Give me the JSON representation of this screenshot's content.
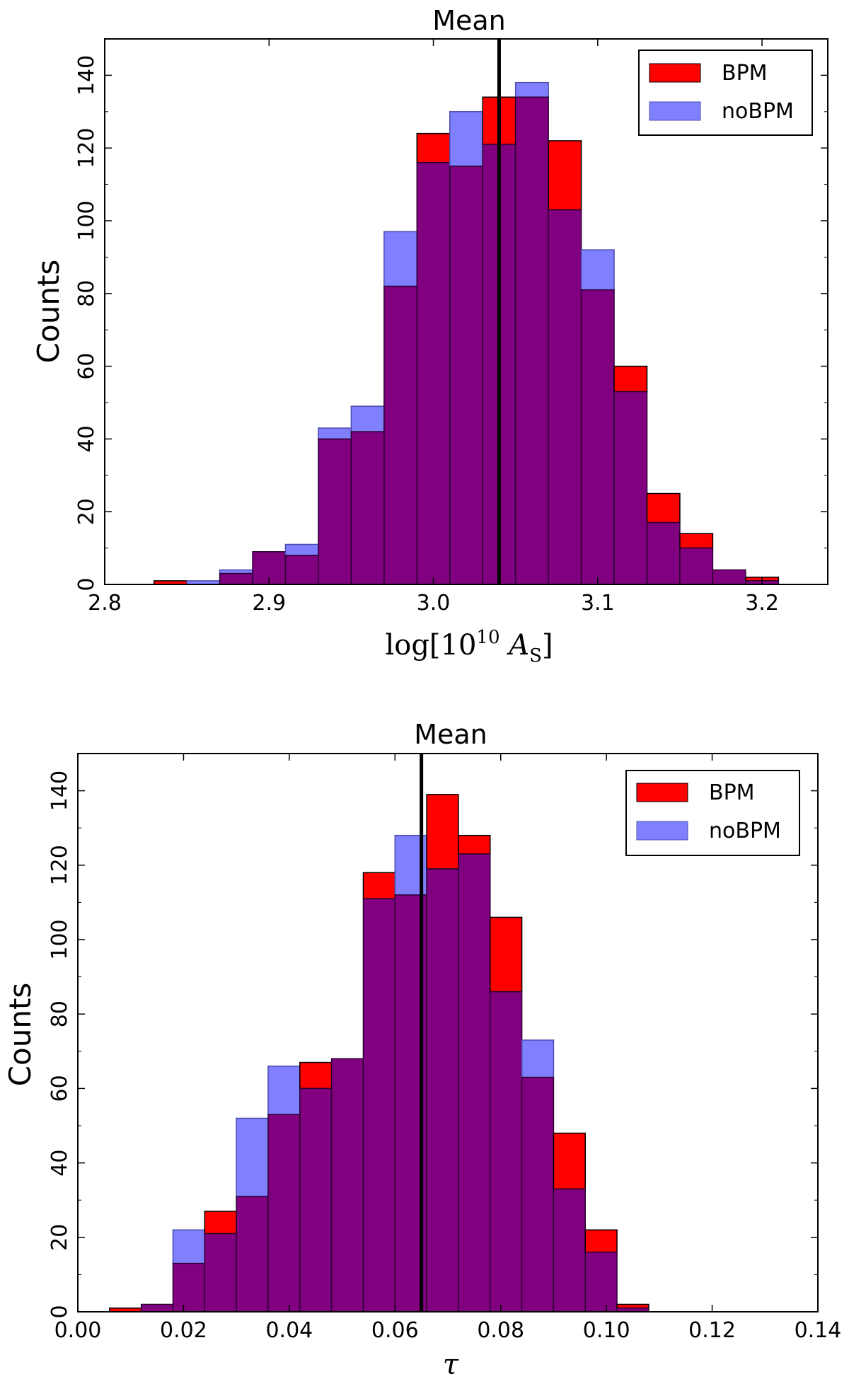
{
  "chart_data": [
    {
      "type": "bar",
      "title": "Mean",
      "xlabel": "log[10^10 A_s]",
      "ylabel": "Counts",
      "xlim": [
        2.8,
        3.24
      ],
      "ylim": [
        0,
        150
      ],
      "xticks": [
        "2.8",
        "2.9",
        "3.0",
        "3.1",
        "3.2"
      ],
      "xtick_values": [
        2.8,
        2.9,
        3.0,
        3.1,
        3.2
      ],
      "yticks": [
        "0",
        "20",
        "40",
        "60",
        "80",
        "100",
        "120",
        "140"
      ],
      "ytick_values": [
        0,
        20,
        40,
        60,
        80,
        100,
        120,
        140
      ],
      "bin_edges": [
        2.83,
        2.85,
        2.87,
        2.89,
        2.91,
        2.93,
        2.95,
        2.97,
        2.99,
        3.01,
        3.03,
        3.05,
        3.07,
        3.09,
        3.11,
        3.13,
        3.15,
        3.17,
        3.19,
        3.21
      ],
      "series": [
        {
          "name": "BPM",
          "color": "#ff0000",
          "values": [
            1,
            0,
            3,
            9,
            8,
            40,
            42,
            82,
            124,
            115,
            134,
            134,
            122,
            81,
            60,
            25,
            14,
            4,
            2
          ]
        },
        {
          "name": "noBPM",
          "color": "#0000ff",
          "values": [
            0,
            1,
            4,
            9,
            11,
            43,
            49,
            97,
            116,
            130,
            121,
            138,
            103,
            92,
            53,
            17,
            10,
            4,
            1
          ]
        }
      ],
      "overlap_color": "#800080",
      "mean_line": 3.04,
      "legend": "top-right"
    },
    {
      "type": "bar",
      "title": "Mean",
      "xlabel": "τ",
      "ylabel": "Counts",
      "xlim": [
        0.0,
        0.14
      ],
      "ylim": [
        0,
        150
      ],
      "xticks": [
        "0.00",
        "0.02",
        "0.04",
        "0.06",
        "0.08",
        "0.10",
        "0.12",
        "0.14"
      ],
      "xtick_values": [
        0.0,
        0.02,
        0.04,
        0.06,
        0.08,
        0.1,
        0.12,
        0.14
      ],
      "yticks": [
        "0",
        "20",
        "40",
        "60",
        "80",
        "100",
        "120",
        "140"
      ],
      "ytick_values": [
        0,
        20,
        40,
        60,
        80,
        100,
        120,
        140
      ],
      "bin_edges": [
        0.006,
        0.012,
        0.018,
        0.024,
        0.03,
        0.036,
        0.042,
        0.048,
        0.054,
        0.06,
        0.066,
        0.072,
        0.078,
        0.084,
        0.09,
        0.096,
        0.102,
        0.108,
        0.114
      ],
      "series": [
        {
          "name": "BPM",
          "color": "#ff0000",
          "values": [
            1,
            2,
            13,
            27,
            31,
            53,
            67,
            68,
            118,
            112,
            139,
            128,
            106,
            63,
            48,
            22,
            2,
            0
          ]
        },
        {
          "name": "noBPM",
          "color": "#0000ff",
          "values": [
            0,
            2,
            22,
            21,
            52,
            66,
            60,
            68,
            111,
            128,
            119,
            123,
            86,
            73,
            33,
            16,
            1,
            0
          ]
        }
      ],
      "overlap_color": "#800080",
      "mean_line": 0.065,
      "legend": "top-right"
    }
  ]
}
